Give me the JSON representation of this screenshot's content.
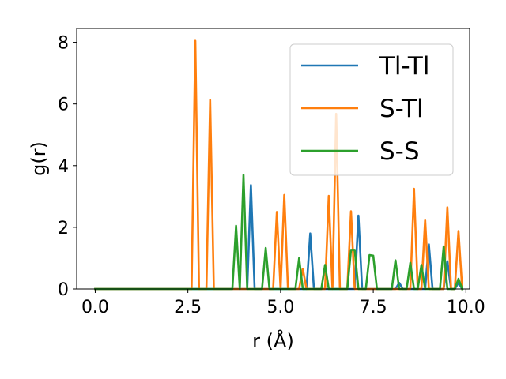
{
  "chart_data": {
    "type": "line",
    "xlabel": "r (Å)",
    "ylabel": "g(r)",
    "xlim": [
      -0.5,
      10.1
    ],
    "ylim": [
      0,
      8.45
    ],
    "xticks": [
      0.0,
      2.5,
      5.0,
      7.5,
      10.0
    ],
    "xtick_labels": [
      "0.0",
      "2.5",
      "5.0",
      "7.5",
      "10.0"
    ],
    "yticks": [
      0,
      2,
      4,
      6,
      8
    ],
    "ytick_labels": [
      "0",
      "2",
      "4",
      "6",
      "8"
    ],
    "grid": false,
    "legend_position": "top-right",
    "series": [
      {
        "name": "Tl-Tl",
        "color": "#1f77b4",
        "points": [
          [
            0,
            0
          ],
          [
            4.1,
            0
          ],
          [
            4.2,
            3.37
          ],
          [
            4.3,
            0
          ],
          [
            5.7,
            0
          ],
          [
            5.8,
            1.8
          ],
          [
            5.9,
            0
          ],
          [
            7.0,
            0
          ],
          [
            7.1,
            2.38
          ],
          [
            7.2,
            0
          ],
          [
            8.1,
            0
          ],
          [
            8.2,
            0.2
          ],
          [
            8.3,
            0
          ],
          [
            8.9,
            0
          ],
          [
            9.0,
            1.45
          ],
          [
            9.1,
            0
          ],
          [
            9.4,
            0
          ],
          [
            9.5,
            0.9
          ],
          [
            9.6,
            0
          ],
          [
            9.7,
            0
          ],
          [
            9.8,
            0.2
          ],
          [
            9.9,
            0
          ]
        ]
      },
      {
        "name": "S-Tl",
        "color": "#ff7f0e",
        "points": [
          [
            0,
            0
          ],
          [
            2.6,
            0
          ],
          [
            2.7,
            8.05
          ],
          [
            2.8,
            0
          ],
          [
            3.0,
            0
          ],
          [
            3.1,
            6.13
          ],
          [
            3.2,
            0
          ],
          [
            4.8,
            0
          ],
          [
            4.9,
            2.5
          ],
          [
            5.0,
            0
          ],
          [
            5.1,
            3.05
          ],
          [
            5.2,
            0
          ],
          [
            5.5,
            0
          ],
          [
            5.6,
            0.65
          ],
          [
            5.7,
            0
          ],
          [
            6.2,
            0
          ],
          [
            6.3,
            3.02
          ],
          [
            6.4,
            0
          ],
          [
            6.5,
            5.68
          ],
          [
            6.6,
            0
          ],
          [
            6.8,
            0
          ],
          [
            6.9,
            2.52
          ],
          [
            7.0,
            0
          ],
          [
            8.5,
            0
          ],
          [
            8.6,
            3.25
          ],
          [
            8.7,
            0
          ],
          [
            8.8,
            0
          ],
          [
            8.9,
            2.25
          ],
          [
            9.0,
            0
          ],
          [
            9.4,
            0
          ],
          [
            9.5,
            2.65
          ],
          [
            9.6,
            0
          ],
          [
            9.7,
            0
          ],
          [
            9.8,
            1.88
          ],
          [
            9.9,
            0
          ]
        ]
      },
      {
        "name": "S-S",
        "color": "#2ca02c",
        "points": [
          [
            0,
            0
          ],
          [
            3.7,
            0
          ],
          [
            3.8,
            2.05
          ],
          [
            3.9,
            0
          ],
          [
            4.0,
            3.7
          ],
          [
            4.1,
            0
          ],
          [
            4.5,
            0
          ],
          [
            4.6,
            1.33
          ],
          [
            4.7,
            0
          ],
          [
            5.4,
            0
          ],
          [
            5.5,
            1.0
          ],
          [
            5.6,
            0
          ],
          [
            6.1,
            0
          ],
          [
            6.2,
            0.78
          ],
          [
            6.3,
            0
          ],
          [
            6.8,
            0
          ],
          [
            6.9,
            1.27
          ],
          [
            7.0,
            1.27
          ],
          [
            7.1,
            0
          ],
          [
            7.3,
            0
          ],
          [
            7.4,
            1.1
          ],
          [
            7.5,
            1.08
          ],
          [
            7.6,
            0
          ],
          [
            8.0,
            0
          ],
          [
            8.1,
            0.93
          ],
          [
            8.2,
            0
          ],
          [
            8.4,
            0
          ],
          [
            8.5,
            0.85
          ],
          [
            8.6,
            0
          ],
          [
            8.7,
            0
          ],
          [
            8.8,
            0.78
          ],
          [
            8.9,
            0
          ],
          [
            9.3,
            0
          ],
          [
            9.4,
            1.38
          ],
          [
            9.5,
            0
          ],
          [
            9.7,
            0
          ],
          [
            9.8,
            0.33
          ],
          [
            9.9,
            0
          ]
        ]
      }
    ]
  }
}
